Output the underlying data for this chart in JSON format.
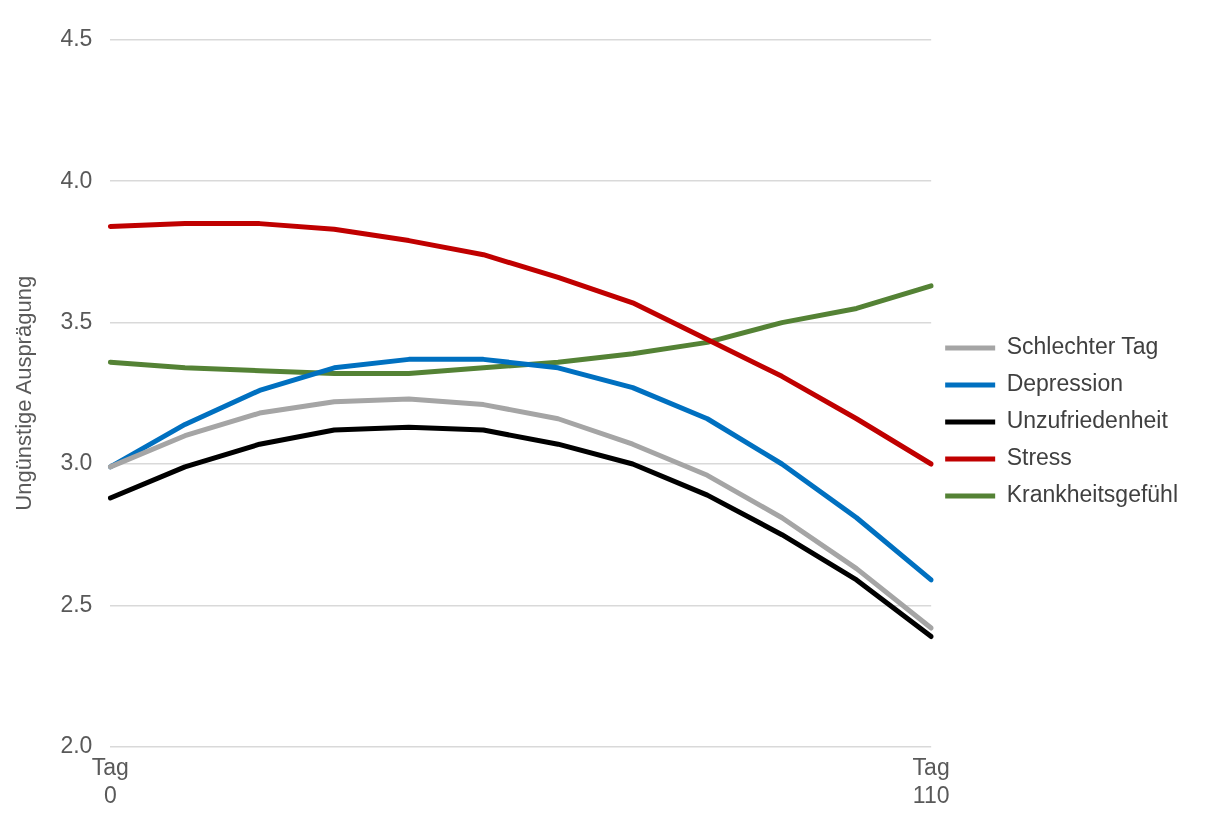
{
  "chart_data": {
    "type": "line",
    "ylabel": "Ungünstige Ausprägung",
    "categories": [
      "Tag 0",
      null,
      null,
      null,
      null,
      null,
      null,
      null,
      null,
      null,
      null,
      "Tag 110"
    ],
    "ylim": [
      2.0,
      4.5
    ],
    "yticks": [
      {
        "value": 2.0,
        "label": "2.0"
      },
      {
        "value": 2.5,
        "label": "2.5"
      },
      {
        "value": 3.0,
        "label": "3.0"
      },
      {
        "value": 3.5,
        "label": "3.5"
      },
      {
        "value": 4.0,
        "label": "4.0"
      },
      {
        "value": 4.5,
        "label": "4.5"
      }
    ],
    "grid": "y",
    "legend": "right",
    "marker": "none",
    "line_style": "solid",
    "series": [
      {
        "name": "Schlechter Tag",
        "color": "#a5a5a5",
        "values": [
          2.99,
          3.1,
          3.18,
          3.22,
          3.23,
          3.21,
          3.16,
          3.07,
          2.96,
          2.81,
          2.63,
          2.42
        ]
      },
      {
        "name": "Depression",
        "color": "#0070c0",
        "values": [
          2.99,
          3.14,
          3.26,
          3.34,
          3.37,
          3.37,
          3.34,
          3.27,
          3.16,
          3.0,
          2.81,
          2.59
        ]
      },
      {
        "name": "Unzufriedenheit",
        "color": "#000000",
        "values": [
          2.88,
          2.99,
          3.07,
          3.12,
          3.13,
          3.12,
          3.07,
          3.0,
          2.89,
          2.75,
          2.59,
          2.39
        ]
      },
      {
        "name": "Stress",
        "color": "#c00000",
        "values": [
          3.84,
          3.85,
          3.85,
          3.83,
          3.79,
          3.74,
          3.66,
          3.57,
          3.44,
          3.31,
          3.16,
          3.0
        ]
      },
      {
        "name": "Krankheitsgefühl",
        "color": "#548235",
        "values": [
          3.36,
          3.34,
          3.33,
          3.32,
          3.32,
          3.34,
          3.36,
          3.39,
          3.43,
          3.5,
          3.55,
          3.63
        ]
      }
    ]
  }
}
